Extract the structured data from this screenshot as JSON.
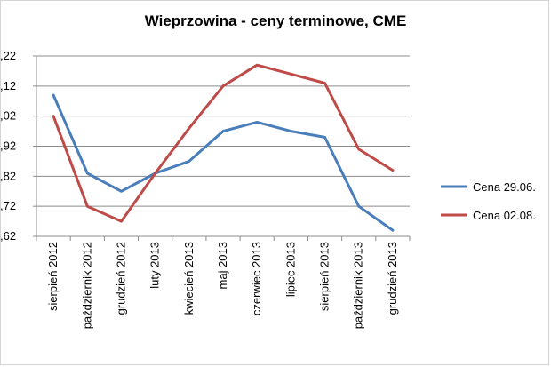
{
  "chart_data": {
    "type": "line",
    "title": "Wieprzowina - ceny terminowe, CME",
    "categories": [
      "sierpień 2012",
      "październik 2012",
      "grudzień 2012",
      "luty 2013",
      "kwiecień 2013",
      "maj 2013",
      "czerwiec 2013",
      "lipiec 2013",
      "sierpień 2013",
      "październik 2013",
      "grudzień 2013"
    ],
    "series": [
      {
        "name": "Cena 29.06.",
        "color": "#4a7ebb",
        "values": [
          2.09,
          1.83,
          1.77,
          1.83,
          1.87,
          1.97,
          2.0,
          1.97,
          1.95,
          1.72,
          1.64
        ]
      },
      {
        "name": "Cena 02.08.",
        "color": "#be4b48",
        "values": [
          2.02,
          1.72,
          1.67,
          1.83,
          1.98,
          2.12,
          2.19,
          2.16,
          2.13,
          1.91,
          1.84
        ]
      }
    ],
    "y_ticks": [
      ",62",
      ",72",
      ",82",
      ",92",
      ",02",
      ",12",
      ",22"
    ],
    "ylim": [
      1.62,
      2.22
    ],
    "grid": true,
    "legend": "right"
  }
}
